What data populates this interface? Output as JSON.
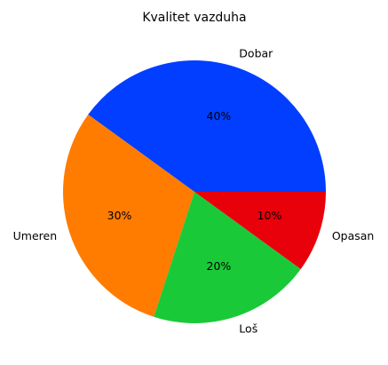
{
  "chart_data": {
    "type": "pie",
    "title": "Kvalitet vazduha",
    "categories": [
      "Dobar",
      "Umeren",
      "Loš",
      "Opasan"
    ],
    "values": [
      40,
      30,
      20,
      10
    ],
    "percent_labels": [
      "40%",
      "30%",
      "20%",
      "10%"
    ],
    "colors": [
      "#023eff",
      "#ff7c00",
      "#1ac938",
      "#e8000b"
    ],
    "start_angle_deg": 0,
    "direction": "counterclockwise"
  }
}
